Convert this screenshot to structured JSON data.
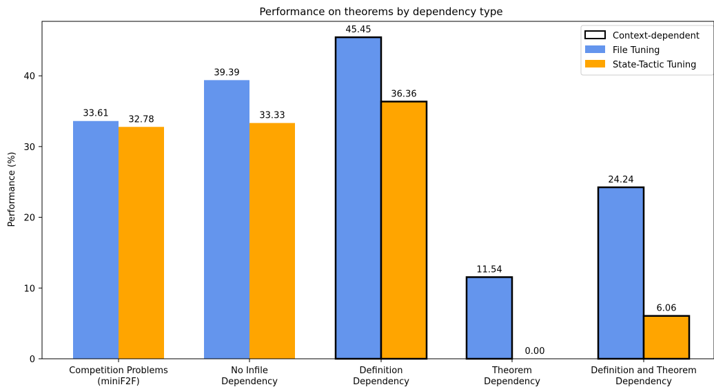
{
  "chart_data": {
    "type": "bar",
    "title": "Performance on theorems by dependency type",
    "xlabel": "",
    "ylabel": "Performance (%)",
    "ylim": [
      0,
      47.7
    ],
    "yticks": [
      0,
      10,
      20,
      30,
      40
    ],
    "categories": [
      [
        "Competition Problems",
        "(miniF2F)"
      ],
      [
        "No Infile",
        "Dependency"
      ],
      [
        "Definition",
        "Dependency"
      ],
      [
        "Theorem",
        "Dependency"
      ],
      [
        "Definition and Theorem",
        "Dependency"
      ]
    ],
    "context_dependent": [
      false,
      false,
      true,
      true,
      true
    ],
    "series": [
      {
        "name": "File Tuning",
        "color": "#6495ED",
        "values": [
          33.61,
          39.39,
          45.45,
          11.54,
          24.24
        ],
        "labels": [
          "33.61",
          "39.39",
          "45.45",
          "11.54",
          "24.24"
        ]
      },
      {
        "name": "State-Tactic Tuning",
        "color": "#FFA500",
        "values": [
          32.78,
          33.33,
          36.36,
          0.0,
          6.06
        ],
        "labels": [
          "32.78",
          "33.33",
          "36.36",
          "0.00",
          "6.06"
        ]
      }
    ],
    "legend": {
      "position": "top-right",
      "entries": [
        {
          "label": "Context-dependent",
          "style": "outline"
        },
        {
          "label": "File Tuning",
          "color": "#6495ED"
        },
        {
          "label": "State-Tactic Tuning",
          "color": "#FFA500"
        }
      ]
    },
    "grid": false
  }
}
